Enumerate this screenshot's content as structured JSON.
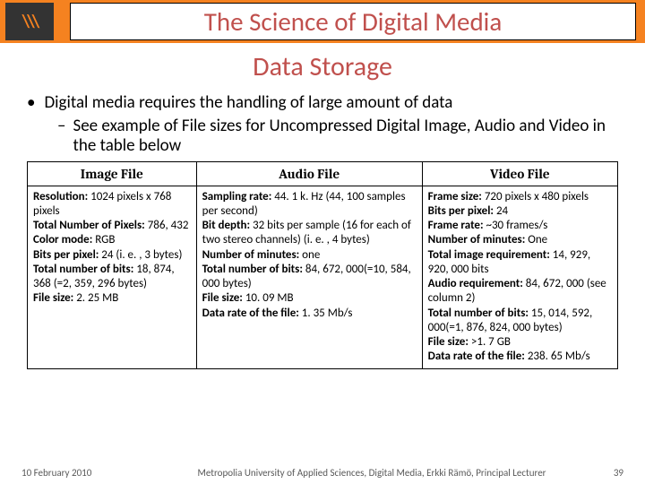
{
  "header": {
    "logo_text": "\\\\\\",
    "course_title": "The Science of Digital Media"
  },
  "slide_title": "Data Storage",
  "bullets": {
    "l1": "Digital media requires the handling of large amount of data",
    "l2": "See example of File sizes for Uncompressed Digital Image, Audio and Video in the table below"
  },
  "table": {
    "headers": [
      "Image File",
      "Audio File",
      "Video File"
    ],
    "image": {
      "resolution_label": "Resolution:",
      "resolution_val": " 1024 pixels x 768 pixels",
      "totalpixels_label": "Total Number of Pixels:",
      "totalpixels_val": " 786, 432",
      "colormode_label": "Color mode:",
      "colormode_val": " RGB",
      "bpp_label": "Bits per pixel:",
      "bpp_val": " 24 (i. e. , 3 bytes)",
      "totalbits_label": "Total number of bits:",
      "totalbits_val": " 18, 874, 368 (=2, 359, 296 bytes)",
      "filesize_label": "File size:",
      "filesize_val": " 2. 25 MB"
    },
    "audio": {
      "samprate_label": "Sampling rate:",
      "samprate_val": " 44. 1 k. Hz (44, 100 samples per second)",
      "bitdepth_label": "Bit depth:",
      "bitdepth_val": " 32 bits per sample (16 for each of two stereo channels) (i. e. , 4 bytes)",
      "minutes_label": "Number of minutes:",
      "minutes_val": " one",
      "totalbits_label": "Total number of bits:",
      "totalbits_val": " 84, 672, 000(=10, 584, 000 bytes)",
      "filesize_label": "File size:",
      "filesize_val": " 10. 09 MB",
      "datarate_label": "Data rate of the file:",
      "datarate_val": " 1. 35 Mb/s"
    },
    "video": {
      "framesize_label": "Frame size:",
      "framesize_val": " 720 pixels x 480 pixels",
      "bpp_label": "Bits per pixel:",
      "bpp_val": " 24",
      "framerate_label": "Frame rate:",
      "framerate_val": " ~30 frames/s",
      "minutes_label": "Number of minutes:",
      "minutes_val": " One",
      "imgreq_label": "Total image requirement:",
      "imgreq_val": " 14, 929, 920, 000 bits",
      "audioreq_label": "Audio requirement:",
      "audioreq_val": " 84, 672, 000 (see column 2)",
      "totalbits_label": "Total number of bits:",
      "totalbits_val": " 15, 014, 592, 000(=1, 876, 824, 000 bytes)",
      "filesize_label": "File size:",
      "filesize_val": " >1. 7 GB",
      "datarate_label": "Data rate of the file:",
      "datarate_val": " 238. 65 Mb/s"
    }
  },
  "footer": {
    "date": "10 February 2010",
    "mid": "Metropolia University of Applied Sciences, Digital Media, Erkki Rämö, Principal Lecturer",
    "page": "39"
  },
  "colors": {
    "accent_orange": "#f58220",
    "title_color": "#c0504d",
    "footer_text": "#595959"
  }
}
